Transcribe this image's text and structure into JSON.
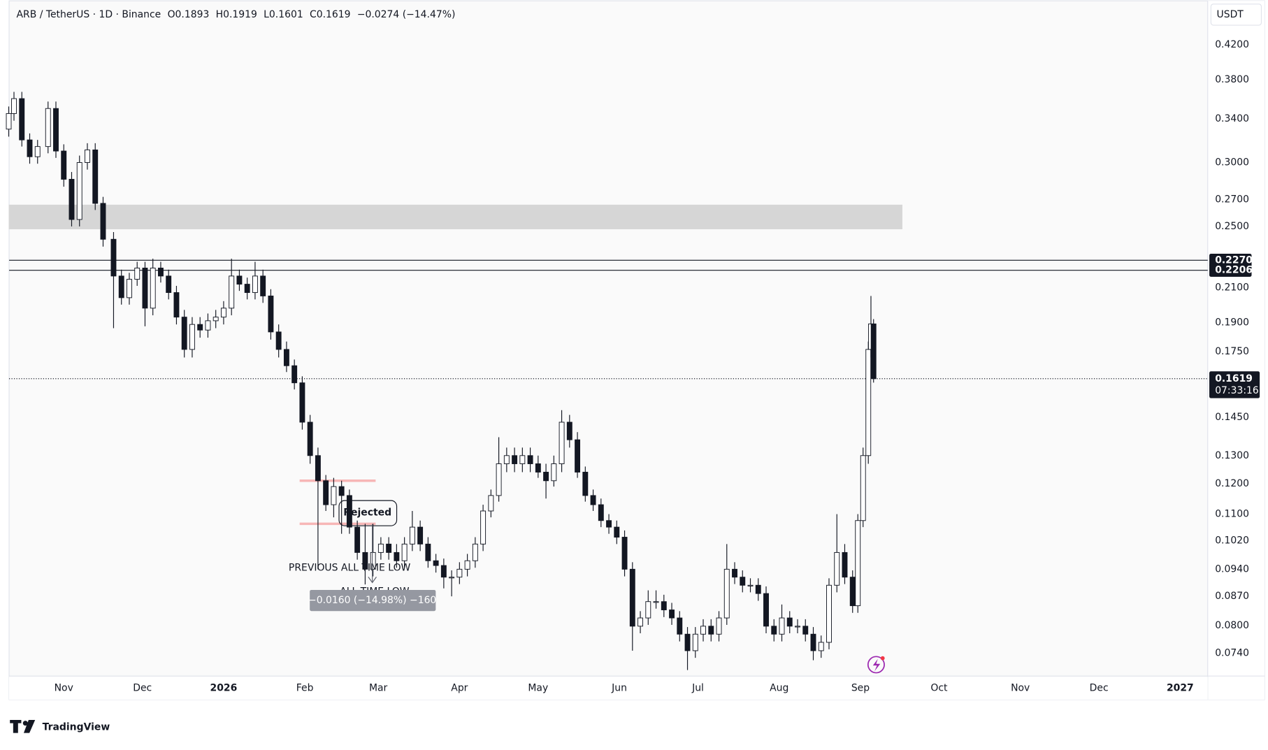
{
  "chart_data": {
    "type": "candlestick",
    "title": "ARB / TetherUS · 1D · Binance",
    "header_values": [
      "O0.1893",
      "H0.1919",
      "L0.1601",
      "C0.1619",
      "−0.0274 (−14.47%)"
    ],
    "currency": "USDT",
    "log_scale": true,
    "up_color": "#ffffff",
    "down_color": "#131722",
    "x": [
      0,
      2,
      5,
      8,
      11,
      15,
      18,
      21,
      24,
      27,
      30,
      33,
      36,
      40,
      43,
      46,
      49,
      52,
      55,
      58,
      61,
      64,
      67,
      70,
      73,
      76,
      79,
      82,
      85,
      88,
      91,
      94,
      97,
      100,
      103,
      106,
      109,
      112,
      115,
      118,
      121,
      124,
      127,
      130,
      133,
      136,
      139,
      142,
      145,
      148,
      151,
      154,
      157,
      160,
      163,
      166,
      169,
      172,
      175,
      178,
      181,
      184,
      187,
      190,
      193,
      196,
      199,
      202,
      205,
      208,
      211,
      214,
      217,
      220,
      223,
      226,
      229,
      232,
      235,
      238,
      241,
      244,
      247,
      250,
      253,
      256,
      259,
      262,
      265,
      268,
      271,
      274,
      277,
      280,
      283,
      286,
      289,
      292,
      295,
      298,
      301,
      304,
      307,
      310,
      313,
      316,
      319,
      322,
      324,
      326,
      328,
      329,
      330
    ],
    "open": [
      0.33,
      0.345,
      0.36,
      0.32,
      0.305,
      0.314,
      0.35,
      0.31,
      0.286,
      0.255,
      0.3,
      0.311,
      0.267,
      0.241,
      0.217,
      0.204,
      0.215,
      0.222,
      0.198,
      0.222,
      0.217,
      0.207,
      0.193,
      0.176,
      0.189,
      0.186,
      0.191,
      0.193,
      0.198,
      0.217,
      0.212,
      0.207,
      0.217,
      0.205,
      0.185,
      0.176,
      0.168,
      0.16,
      0.143,
      0.13,
      0.121,
      0.113,
      0.119,
      0.116,
      0.106,
      0.0986,
      0.094,
      0.0986,
      0.101,
      0.0986,
      0.0963,
      0.101,
      0.106,
      0.101,
      0.0963,
      0.095,
      0.0919,
      0.0919,
      0.094,
      0.0963,
      0.101,
      0.111,
      0.116,
      0.127,
      0.13,
      0.127,
      0.13,
      0.127,
      0.124,
      0.121,
      0.127,
      0.143,
      0.136,
      0.124,
      0.116,
      0.113,
      0.108,
      0.106,
      0.103,
      0.094,
      0.0799,
      0.0818,
      0.0857,
      0.0857,
      0.0837,
      0.0818,
      0.0781,
      0.0745,
      0.0781,
      0.0799,
      0.0781,
      0.0818,
      0.094,
      0.0919,
      0.0898,
      0.0898,
      0.0877,
      0.0799,
      0.0781,
      0.0818,
      0.0799,
      0.0799,
      0.0781,
      0.0745,
      0.0763,
      0.0898,
      0.0986,
      0.0919,
      0.0847,
      0.108,
      0.13,
      0.176,
      0.1893
    ],
    "high": [
      0.352,
      0.367,
      0.367,
      0.326,
      0.32,
      0.357,
      0.357,
      0.316,
      0.292,
      0.306,
      0.317,
      0.317,
      0.272,
      0.246,
      0.221,
      0.219,
      0.226,
      0.226,
      0.228,
      0.226,
      0.221,
      0.211,
      0.197,
      0.193,
      0.193,
      0.195,
      0.197,
      0.202,
      0.228,
      0.221,
      0.216,
      0.226,
      0.221,
      0.209,
      0.189,
      0.18,
      0.171,
      0.163,
      0.146,
      0.133,
      0.123,
      0.122,
      0.121,
      0.118,
      0.108,
      0.107,
      0.107,
      0.103,
      0.103,
      0.101,
      0.103,
      0.111,
      0.108,
      0.103,
      0.0982,
      0.0969,
      0.0937,
      0.0959,
      0.0982,
      0.103,
      0.113,
      0.118,
      0.137,
      0.133,
      0.133,
      0.133,
      0.133,
      0.13,
      0.127,
      0.13,
      0.148,
      0.146,
      0.139,
      0.126,
      0.118,
      0.115,
      0.11,
      0.108,
      0.105,
      0.0959,
      0.0834,
      0.0885,
      0.0885,
      0.0874,
      0.0854,
      0.0834,
      0.0797,
      0.0797,
      0.0815,
      0.0815,
      0.0834,
      0.101,
      0.0959,
      0.0937,
      0.0916,
      0.0916,
      0.0895,
      0.0815,
      0.085,
      0.0834,
      0.0815,
      0.0815,
      0.0797,
      0.0778,
      0.0916,
      0.11,
      0.101,
      0.0937,
      0.11,
      0.133,
      0.18,
      0.205,
      0.1919
    ],
    "low": [
      0.323,
      0.338,
      0.314,
      0.299,
      0.299,
      0.308,
      0.304,
      0.28,
      0.25,
      0.25,
      0.294,
      0.262,
      0.236,
      0.187,
      0.2,
      0.2,
      0.211,
      0.188,
      0.194,
      0.213,
      0.203,
      0.189,
      0.172,
      0.172,
      0.182,
      0.182,
      0.187,
      0.189,
      0.194,
      0.208,
      0.203,
      0.203,
      0.201,
      0.181,
      0.172,
      0.165,
      0.157,
      0.14,
      0.127,
      0.094,
      0.111,
      0.109,
      0.104,
      0.104,
      0.0966,
      0.09,
      0.0921,
      0.0966,
      0.0966,
      0.0944,
      0.0944,
      0.099,
      0.099,
      0.0944,
      0.0931,
      0.089,
      0.087,
      0.0901,
      0.0921,
      0.0944,
      0.099,
      0.109,
      0.114,
      0.124,
      0.124,
      0.124,
      0.124,
      0.122,
      0.115,
      0.119,
      0.124,
      0.133,
      0.122,
      0.114,
      0.111,
      0.106,
      0.104,
      0.101,
      0.0921,
      0.0745,
      0.0783,
      0.0802,
      0.084,
      0.082,
      0.0802,
      0.0765,
      0.0705,
      0.073,
      0.0765,
      0.0765,
      0.0765,
      0.0802,
      0.0901,
      0.088,
      0.088,
      0.0859,
      0.0783,
      0.0765,
      0.0765,
      0.0783,
      0.0783,
      0.0765,
      0.0725,
      0.073,
      0.0748,
      0.088,
      0.0901,
      0.083,
      0.083,
      0.106,
      0.127,
      0.172,
      0.1601
    ],
    "close": [
      0.345,
      0.36,
      0.32,
      0.305,
      0.314,
      0.35,
      0.31,
      0.286,
      0.255,
      0.3,
      0.311,
      0.267,
      0.241,
      0.217,
      0.204,
      0.215,
      0.222,
      0.198,
      0.222,
      0.217,
      0.207,
      0.193,
      0.176,
      0.189,
      0.186,
      0.191,
      0.193,
      0.198,
      0.217,
      0.212,
      0.207,
      0.217,
      0.205,
      0.185,
      0.176,
      0.168,
      0.16,
      0.143,
      0.13,
      0.121,
      0.113,
      0.119,
      0.116,
      0.106,
      0.0986,
      0.094,
      0.0986,
      0.101,
      0.0986,
      0.0963,
      0.101,
      0.106,
      0.101,
      0.0963,
      0.095,
      0.0919,
      0.0919,
      0.094,
      0.0963,
      0.101,
      0.111,
      0.116,
      0.127,
      0.13,
      0.127,
      0.13,
      0.127,
      0.124,
      0.121,
      0.127,
      0.143,
      0.136,
      0.124,
      0.116,
      0.113,
      0.108,
      0.106,
      0.103,
      0.094,
      0.0799,
      0.0818,
      0.0857,
      0.0857,
      0.0837,
      0.0818,
      0.0781,
      0.0745,
      0.0781,
      0.0799,
      0.0781,
      0.0818,
      0.094,
      0.0919,
      0.0898,
      0.0898,
      0.0877,
      0.0799,
      0.0781,
      0.0818,
      0.0799,
      0.0799,
      0.0781,
      0.0745,
      0.0763,
      0.0898,
      0.0986,
      0.0919,
      0.0847,
      0.108,
      0.13,
      0.176,
      0.1893,
      0.1619
    ],
    "xlim": [
      0,
      457.5
    ],
    "xticks": [
      {
        "value": 21,
        "label": "Nov"
      },
      {
        "value": 51,
        "label": "Dec"
      },
      {
        "value": 82,
        "label": "2026"
      },
      {
        "value": 113,
        "label": "Feb"
      },
      {
        "value": 141,
        "label": "Mar"
      },
      {
        "value": 172,
        "label": "Apr"
      },
      {
        "value": 202,
        "label": "May"
      },
      {
        "value": 233,
        "label": "Jun"
      },
      {
        "value": 263,
        "label": "Jul"
      },
      {
        "value": 294,
        "label": "Aug"
      },
      {
        "value": 325,
        "label": "Sep"
      },
      {
        "value": 355,
        "label": "Oct"
      },
      {
        "value": 386,
        "label": "Nov"
      },
      {
        "value": 416,
        "label": "Dec"
      },
      {
        "value": 447,
        "label": "2027"
      }
    ],
    "ylim": [
      0.0693,
      0.477
    ],
    "yticks": [
      {
        "value": 0.42,
        "label": "0.4200"
      },
      {
        "value": 0.38,
        "label": "0.3800"
      },
      {
        "value": 0.34,
        "label": "0.3400"
      },
      {
        "value": 0.3,
        "label": "0.3000"
      },
      {
        "value": 0.27,
        "label": "0.2700"
      },
      {
        "value": 0.25,
        "label": "0.2500"
      },
      {
        "value": 0.21,
        "label": "0.2100"
      },
      {
        "value": 0.19,
        "label": "0.1900"
      },
      {
        "value": 0.175,
        "label": "0.1750"
      },
      {
        "value": 0.145,
        "label": "0.1450"
      },
      {
        "value": 0.13,
        "label": "0.1300"
      },
      {
        "value": 0.12,
        "label": "0.1200"
      },
      {
        "value": 0.11,
        "label": "0.1100"
      },
      {
        "value": 0.102,
        "label": "0.1020"
      },
      {
        "value": 0.094,
        "label": "0.0940"
      },
      {
        "value": 0.087,
        "label": "0.0870"
      },
      {
        "value": 0.08,
        "label": "0.0800"
      },
      {
        "value": 0.074,
        "label": "0.0740"
      }
    ],
    "levels": [
      {
        "value": 0.227,
        "label": "0.2270"
      },
      {
        "value": 0.2206,
        "label": "0.2206"
      }
    ],
    "zone": {
      "low": 0.248,
      "high": 0.266,
      "start": 0,
      "end": 341
    },
    "marked_levels": {
      "values": [
        0.121,
        0.107
      ],
      "start": 111,
      "end": 140
    },
    "price_tag": {
      "value": 0.1619,
      "label": "0.1619",
      "countdown": "07:33:16"
    },
    "annotations": {
      "rejected": "Rejected",
      "previous_atl": "PREVIOUS ALL TIME LOW",
      "atl": "ALL TIME LOW",
      "measure": "−0.0160 (−14.98%) −160"
    },
    "brand": "TradingView"
  }
}
